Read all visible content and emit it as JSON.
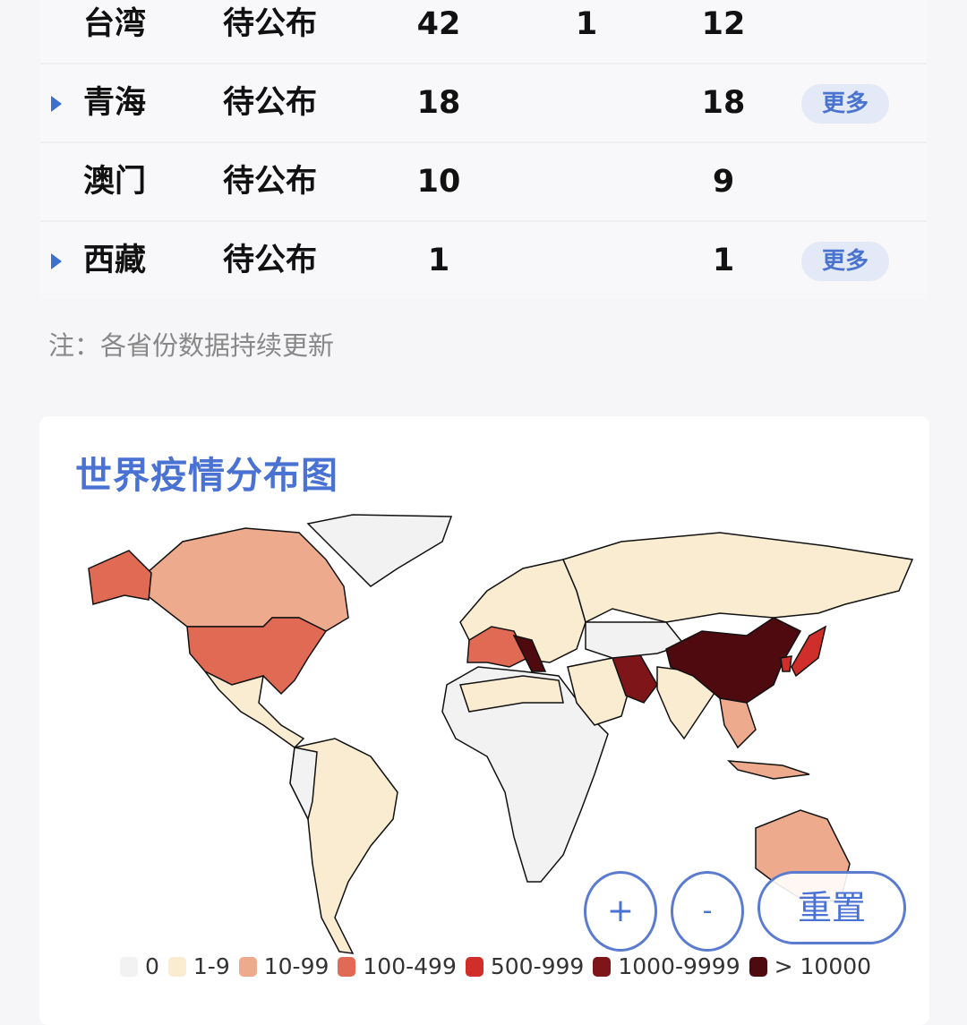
{
  "table": {
    "rows": [
      {
        "name": "台湾",
        "status": "待公布",
        "confirmed": "42",
        "deaths": "1",
        "recovered": "12",
        "expandable": false,
        "more": ""
      },
      {
        "name": "青海",
        "status": "待公布",
        "confirmed": "18",
        "deaths": "",
        "recovered": "18",
        "expandable": true,
        "more": "更多"
      },
      {
        "name": "澳门",
        "status": "待公布",
        "confirmed": "10",
        "deaths": "",
        "recovered": "9",
        "expandable": false,
        "more": ""
      },
      {
        "name": "西藏",
        "status": "待公布",
        "confirmed": "1",
        "deaths": "",
        "recovered": "1",
        "expandable": true,
        "more": "更多"
      }
    ]
  },
  "note": "注：各省份数据持续更新",
  "map": {
    "title": "世界疫情分布图",
    "zoom_in_label": "+",
    "zoom_out_label": "-",
    "reset_label": "重置",
    "legend": [
      {
        "label": "0",
        "color": "#f2f2f2"
      },
      {
        "label": "1-9",
        "color": "#faecd0"
      },
      {
        "label": "10-99",
        "color": "#eeaa8c"
      },
      {
        "label": "100-499",
        "color": "#e16a55"
      },
      {
        "label": "500-999",
        "color": "#cf2e2a"
      },
      {
        "label": "1000-9999",
        "color": "#7e1519"
      },
      {
        "label": "> 10000",
        "color": "#4e0a0f"
      }
    ]
  }
}
